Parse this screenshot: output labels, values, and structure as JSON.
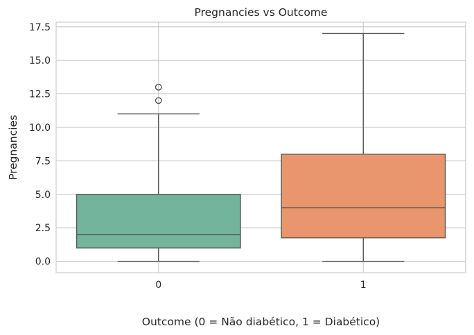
{
  "chart_data": {
    "type": "box",
    "title": "Pregnancies vs Outcome",
    "xlabel": "Outcome (0 = Não diabético, 1 = Diabético)",
    "ylabel": "Pregnancies",
    "categories": [
      "0",
      "1"
    ],
    "ylim": [
      -0.85,
      17.85
    ],
    "yticks": [
      0.0,
      2.5,
      5.0,
      7.5,
      10.0,
      12.5,
      15.0,
      17.5
    ],
    "ytick_labels": [
      "0.0",
      "2.5",
      "5.0",
      "7.5",
      "10.0",
      "12.5",
      "15.0",
      "17.5"
    ],
    "grid": true,
    "boxes": [
      {
        "category": "0",
        "whisker_low": 0,
        "q1": 1,
        "median": 2,
        "q3": 5,
        "whisker_high": 11,
        "outliers": [
          12,
          13
        ],
        "color": "#73b49d"
      },
      {
        "category": "1",
        "whisker_low": 0,
        "q1": 1.75,
        "median": 4,
        "q3": 8,
        "whisker_high": 17,
        "outliers": [],
        "color": "#e9966f"
      }
    ]
  }
}
